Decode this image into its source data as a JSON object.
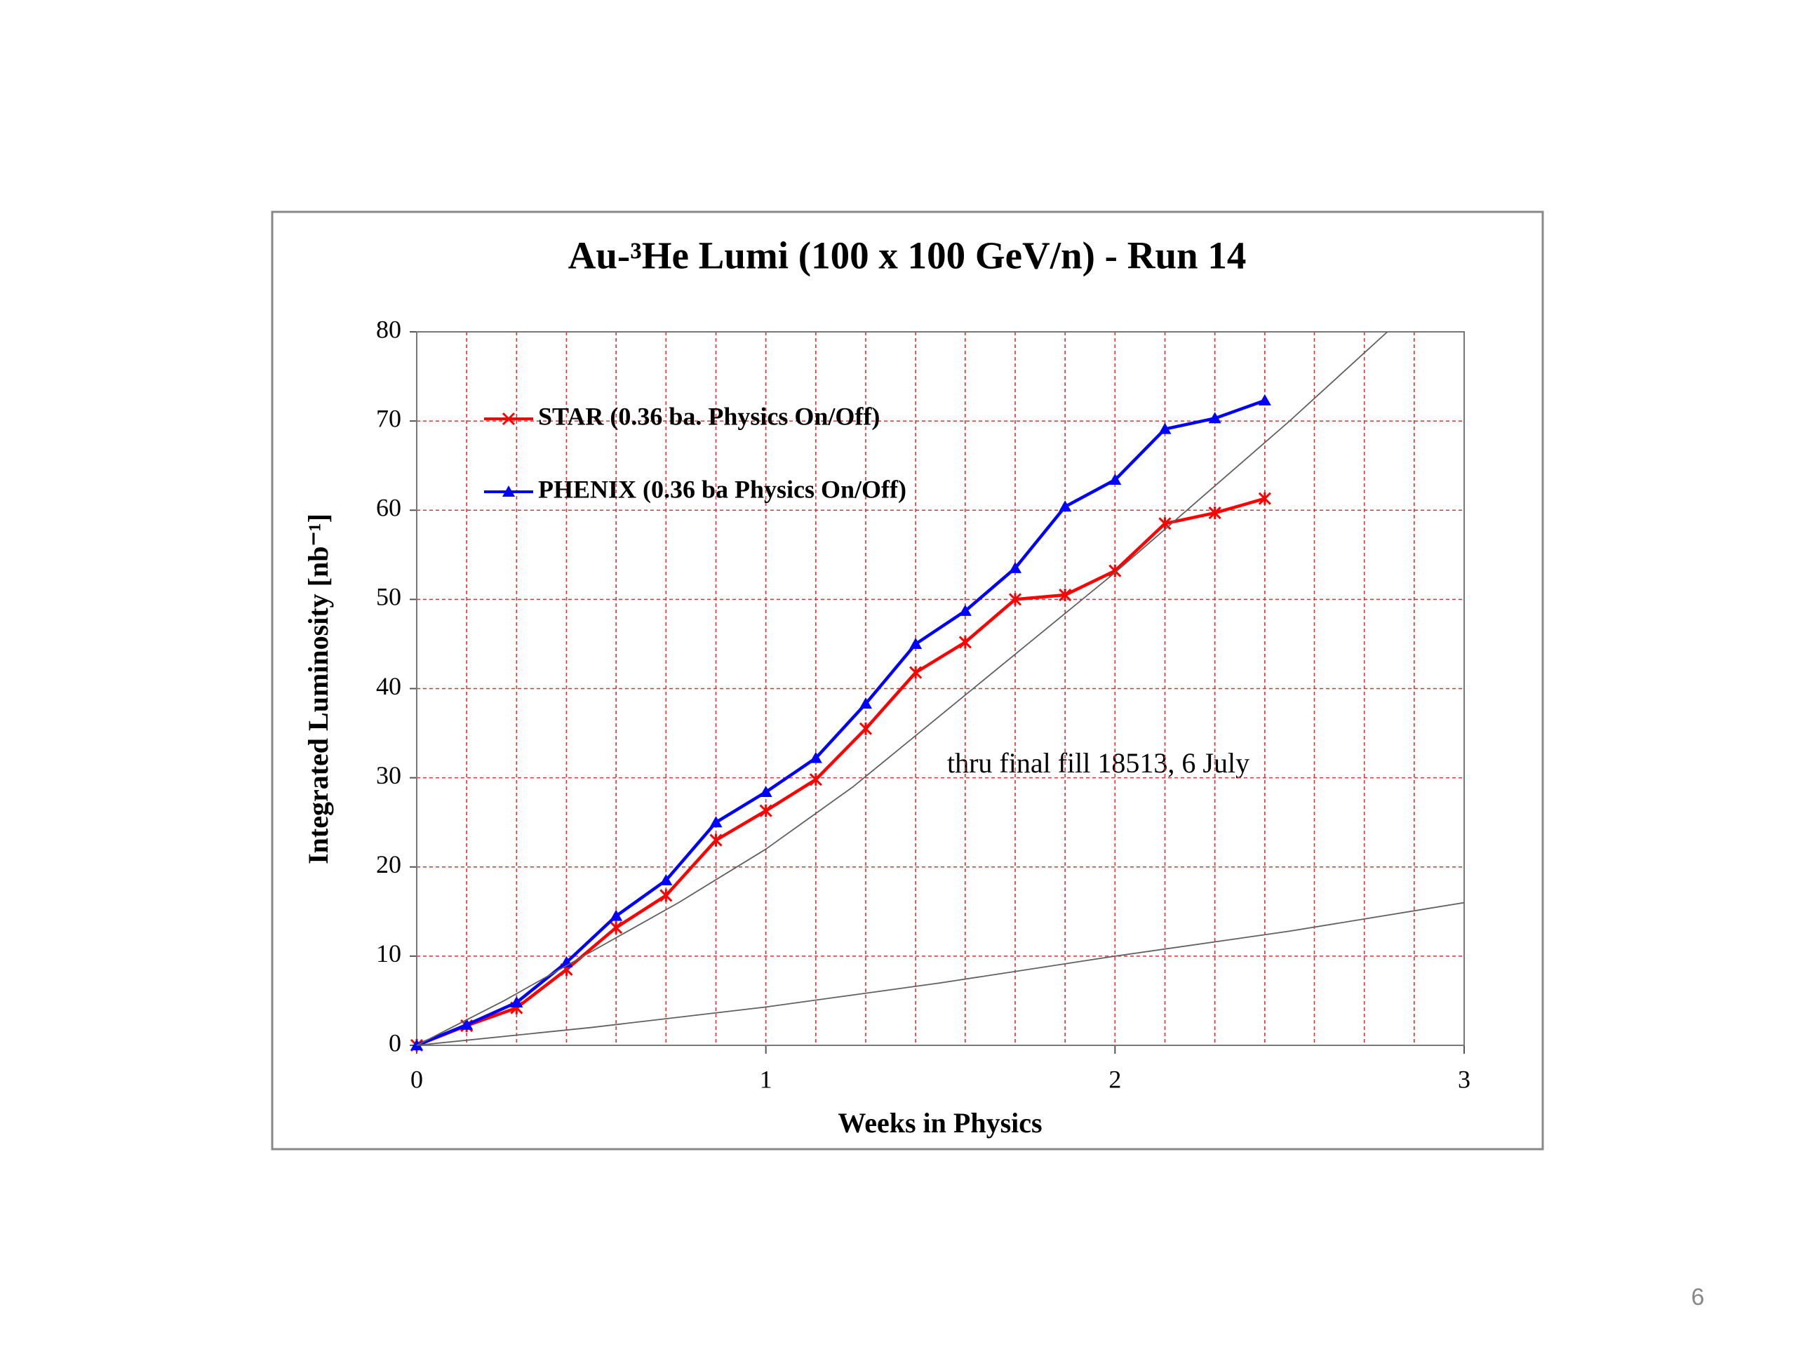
{
  "chart_data": {
    "type": "line",
    "title": "Au-³He Lumi (100 x 100 GeV/n) - Run 14",
    "xlabel": "Weeks  in Physics",
    "ylabel": "Integrated Luminosity [nb⁻¹]",
    "annotation": "thru final  fill 18513,  6 July",
    "xlim": [
      0,
      3
    ],
    "xticks": [
      0,
      1,
      2,
      3
    ],
    "xminorticks": [
      0.143,
      0.286,
      0.429,
      0.571,
      0.714,
      0.857,
      1.143,
      1.286,
      1.429,
      1.571,
      1.714,
      1.857,
      2.143,
      2.286,
      2.429,
      2.571,
      2.714,
      2.857
    ],
    "ylim": [
      0,
      80
    ],
    "yticks": [
      0,
      10,
      20,
      30,
      40,
      50,
      60,
      70,
      80
    ],
    "grid": true,
    "grid_color": "#e03030",
    "legend": "upper left",
    "series": [
      {
        "name": "STAR (0.36 ba. Physics On/Off)",
        "color": "#ff0000",
        "marker": "star",
        "x": [
          0,
          0.143,
          0.286,
          0.429,
          0.571,
          0.714,
          0.857,
          1,
          1.143,
          1.286,
          1.429,
          1.571,
          1.714,
          1.857,
          2,
          2.143,
          2.286,
          2.429
        ],
        "values": [
          0,
          2.2,
          4.2,
          8.5,
          13.2,
          16.8,
          23,
          26.3,
          29.8,
          35.5,
          41.8,
          45.2,
          50,
          50.5,
          53.2,
          58.5,
          59.7,
          61.3
        ]
      },
      {
        "name": "PHENIX (0.36 ba Physics On/Off)",
        "color": "#0000ff",
        "marker": "triangle",
        "x": [
          0,
          0.143,
          0.286,
          0.429,
          0.571,
          0.714,
          0.857,
          1,
          1.143,
          1.286,
          1.429,
          1.571,
          1.714,
          1.857,
          2,
          2.143,
          2.286,
          2.429
        ],
        "values": [
          0,
          2.3,
          4.8,
          9.3,
          14.5,
          18.5,
          25,
          28.4,
          32.2,
          38.3,
          45,
          48.7,
          53.5,
          60.4,
          63.4,
          69.1,
          70.3,
          72.3
        ]
      },
      {
        "color": "#606060",
        "x": [
          0,
          0.25,
          0.5,
          0.75,
          1,
          1.25,
          1.5,
          1.75,
          2,
          2.25,
          2.5,
          2.78
        ],
        "values": [
          0,
          5,
          10.5,
          16,
          22,
          29,
          37,
          45,
          53,
          61.5,
          70,
          80
        ]
      },
      {
        "color": "#606060",
        "x": [
          0,
          0.5,
          1,
          1.5,
          2,
          2.5,
          3
        ],
        "values": [
          0,
          2,
          4.3,
          7,
          10,
          12.8,
          16
        ]
      }
    ]
  },
  "page_number": "6"
}
